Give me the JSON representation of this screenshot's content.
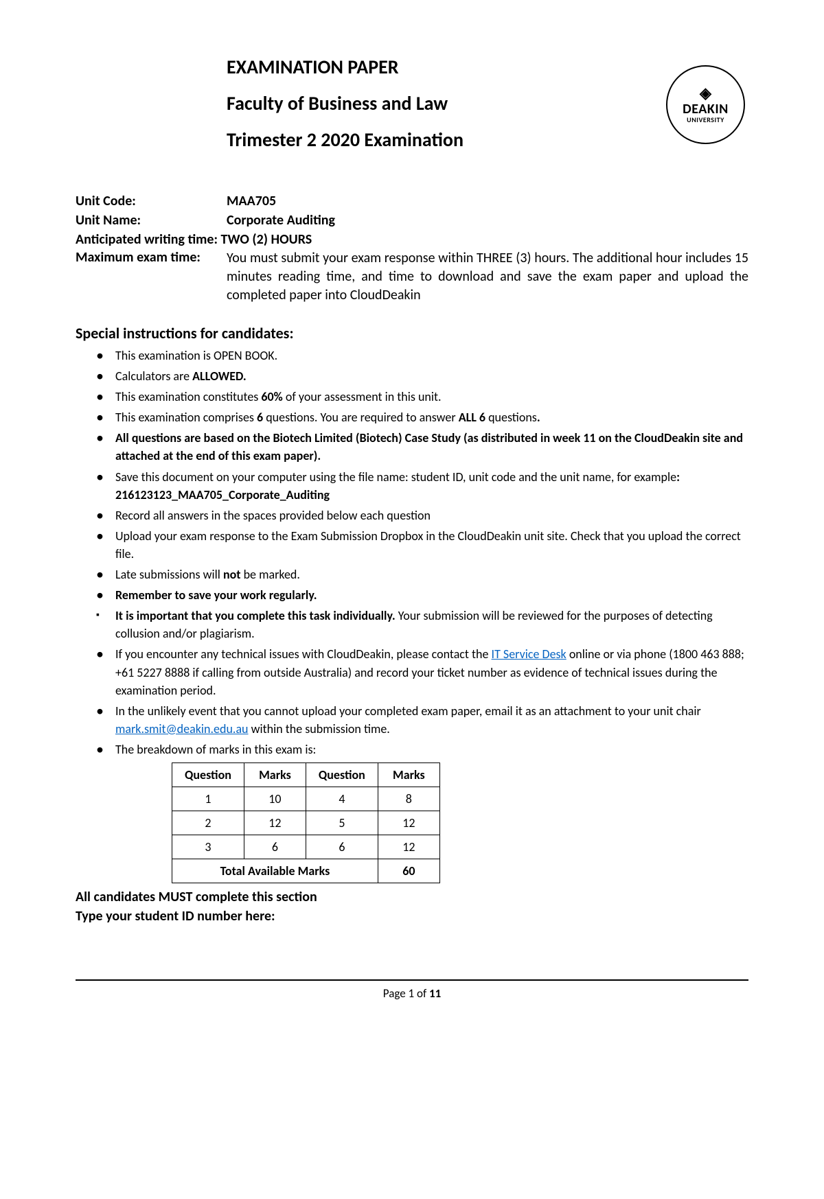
{
  "logo": {
    "name": "DEAKIN",
    "sub": "UNIVERSITY"
  },
  "header": {
    "title1": "EXAMINATION PAPER",
    "title2": "Faculty of Business and Law",
    "title3": "Trimester 2 2020 Examination"
  },
  "meta": {
    "unit_code_label": "Unit Code:",
    "unit_code": "MAA705",
    "unit_name_label": "Unit Name:",
    "unit_name": "Corporate Auditing",
    "writing_time": "Anticipated writing time: TWO (2) HOURS",
    "max_time_label": "Maximum exam time:",
    "max_time_value": "You must submit your exam response within THREE (3) hours. The additional hour includes 15 minutes reading time, and time to download and save the exam paper and upload the completed paper into CloudDeakin"
  },
  "instructions_heading": "Special instructions for candidates:",
  "instructions": {
    "i1": "This examination is OPEN BOOK.",
    "i2a": "Calculators are ",
    "i2b": "ALLOWED.",
    "i3a": "This examination constitutes ",
    "i3b": "60%",
    "i3c": " of your assessment in this unit.",
    "i4a": "This examination comprises ",
    "i4b": "6",
    "i4c": " questions. You are required to answer ",
    "i4d": "ALL 6",
    "i4e": " questions",
    "i4f": ".",
    "i5": "All questions are based on the Biotech Limited (Biotech) Case Study (as distributed in week 11 on the CloudDeakin site and attached at the end of this exam paper).",
    "i6a": "Save this document on your computer using the file name: student ID, unit code and the unit name, for example",
    "i6b": ": 216123123_MAA705_Corporate_Auditing",
    "i7": "Record all answers in the spaces provided below each question",
    "i8": "Upload your exam response to the Exam Submission Dropbox in the CloudDeakin unit site. Check that you upload the correct file.",
    "i9a": "Late submissions will ",
    "i9b": "not",
    "i9c": " be marked.",
    "i10": "Remember to save your work regularly.",
    "i11a": "It is important that you complete this task individually.",
    "i11b": " Your submission will be reviewed for the purposes of detecting collusion and/or plagiarism.",
    "i12a": "If you encounter any technical issues with CloudDeakin, please contact the ",
    "i12b": "IT Service Desk",
    "i12c": " online or via phone (1800 463 888; +61 5227 8888 if calling from outside Australia) and record your ticket number as evidence of technical issues during the examination period.",
    "i13a": "In the unlikely event that you cannot upload your completed exam paper, email it as an attachment to your unit chair ",
    "i13b": "mark.smit@deakin.edu.au",
    "i13c": " within the submission time.",
    "i14": " The breakdown of marks in this exam is:"
  },
  "links": {
    "it_service_desk": "#",
    "email": "mailto:mark.smit@deakin.edu.au"
  },
  "marks_table": {
    "headers": [
      "Question",
      "Marks",
      "Question",
      "Marks"
    ],
    "rows": [
      [
        "1",
        "10",
        "4",
        "8"
      ],
      [
        "2",
        "12",
        "5",
        "12"
      ],
      [
        "3",
        "6",
        "6",
        "12"
      ]
    ],
    "total_label": "Total Available Marks",
    "total_value": "60"
  },
  "bottom": {
    "line1": "All candidates MUST complete this section",
    "line2": "Type your student ID number here:"
  },
  "footer": {
    "prefix": "Page ",
    "page": "1",
    "of": " of ",
    "total": "11"
  }
}
